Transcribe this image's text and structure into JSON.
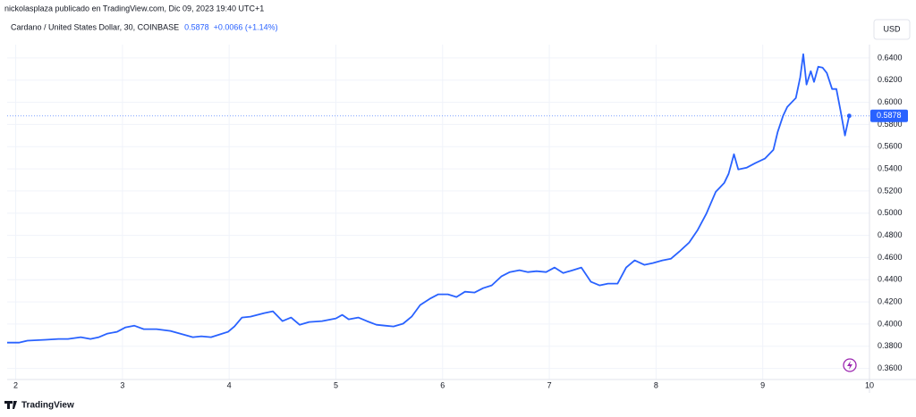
{
  "header": {
    "byline": "nickolasplaza publicado en TradingView.com, Dic 09, 2023 19:40 UTC+1"
  },
  "footer": {
    "brand": "TradingView"
  },
  "chart_data": {
    "type": "line",
    "title": "Cardano / United States Dollar, 30, COINBASE",
    "price_label": "0.5878",
    "change_label": "+0.0066 (+1.14%)",
    "currency": "USD",
    "color": "#2962ff",
    "grid": true,
    "xlim": [
      1.92,
      10
    ],
    "xticks": [
      2,
      3,
      4,
      5,
      6,
      7,
      8,
      9,
      10
    ],
    "ylim": [
      0.35,
      0.652
    ],
    "yticks": [
      {
        "value": 0.36,
        "label": "0.3600"
      },
      {
        "value": 0.38,
        "label": "0.3800"
      },
      {
        "value": 0.4,
        "label": "0.4000"
      },
      {
        "value": 0.42,
        "label": "0.4200"
      },
      {
        "value": 0.44,
        "label": "0.4400"
      },
      {
        "value": 0.46,
        "label": "0.4600"
      },
      {
        "value": 0.48,
        "label": "0.4800"
      },
      {
        "value": 0.5,
        "label": "0.5000"
      },
      {
        "value": 0.52,
        "label": "0.5200"
      },
      {
        "value": 0.54,
        "label": "0.5400"
      },
      {
        "value": 0.56,
        "label": "0.5600"
      },
      {
        "value": 0.58,
        "label": "0.5800"
      },
      {
        "value": 0.6,
        "label": "0.6000"
      },
      {
        "value": 0.62,
        "label": "0.6200"
      },
      {
        "value": 0.64,
        "label": "0.6400"
      }
    ],
    "x": [
      1.92,
      2.03,
      2.11,
      2.28,
      2.4,
      2.49,
      2.61,
      2.7,
      2.78,
      2.86,
      2.95,
      3.03,
      3.11,
      3.2,
      3.32,
      3.45,
      3.57,
      3.66,
      3.74,
      3.83,
      3.91,
      3.99,
      4.05,
      4.12,
      4.2,
      4.33,
      4.41,
      4.5,
      4.58,
      4.66,
      4.75,
      4.87,
      5.0,
      5.06,
      5.12,
      5.21,
      5.29,
      5.38,
      5.46,
      5.54,
      5.63,
      5.71,
      5.79,
      5.88,
      5.96,
      6.05,
      6.13,
      6.21,
      6.3,
      6.38,
      6.46,
      6.55,
      6.63,
      6.72,
      6.8,
      6.88,
      6.97,
      7.05,
      7.13,
      7.22,
      7.3,
      7.39,
      7.47,
      7.55,
      7.64,
      7.72,
      7.8,
      7.89,
      7.97,
      8.06,
      8.14,
      8.22,
      8.31,
      8.39,
      8.47,
      8.56,
      8.6,
      8.64,
      8.68,
      8.73,
      8.77,
      8.85,
      8.93,
      9.02,
      9.1,
      9.14,
      9.19,
      9.23,
      9.31,
      9.35,
      9.38,
      9.41,
      9.45,
      9.48,
      9.52,
      9.56,
      9.6,
      9.65,
      9.69,
      9.73,
      9.77,
      9.81
    ],
    "values": [
      0.3833,
      0.3833,
      0.385,
      0.3858,
      0.3866,
      0.3866,
      0.3882,
      0.3866,
      0.3882,
      0.3914,
      0.393,
      0.397,
      0.3986,
      0.3954,
      0.3954,
      0.3938,
      0.3906,
      0.3882,
      0.389,
      0.3882,
      0.3906,
      0.393,
      0.3978,
      0.4059,
      0.4067,
      0.4099,
      0.4115,
      0.4027,
      0.4059,
      0.3994,
      0.4019,
      0.4027,
      0.4051,
      0.4083,
      0.4043,
      0.4059,
      0.4027,
      0.3994,
      0.3986,
      0.3978,
      0.4003,
      0.4067,
      0.4172,
      0.4228,
      0.4268,
      0.4268,
      0.4244,
      0.4292,
      0.4284,
      0.4324,
      0.4349,
      0.4429,
      0.4469,
      0.4486,
      0.4469,
      0.4477,
      0.4469,
      0.451,
      0.4461,
      0.4486,
      0.451,
      0.4381,
      0.4349,
      0.4365,
      0.4365,
      0.451,
      0.4574,
      0.4534,
      0.455,
      0.4574,
      0.459,
      0.4655,
      0.4735,
      0.4848,
      0.4993,
      0.5194,
      0.5234,
      0.5274,
      0.5355,
      0.5532,
      0.5395,
      0.5411,
      0.5451,
      0.5492,
      0.5572,
      0.5733,
      0.5878,
      0.5959,
      0.6039,
      0.6224,
      0.6434,
      0.616,
      0.6281,
      0.6184,
      0.6321,
      0.6313,
      0.6265,
      0.612,
      0.612,
      0.5918,
      0.5701,
      0.5878
    ]
  }
}
